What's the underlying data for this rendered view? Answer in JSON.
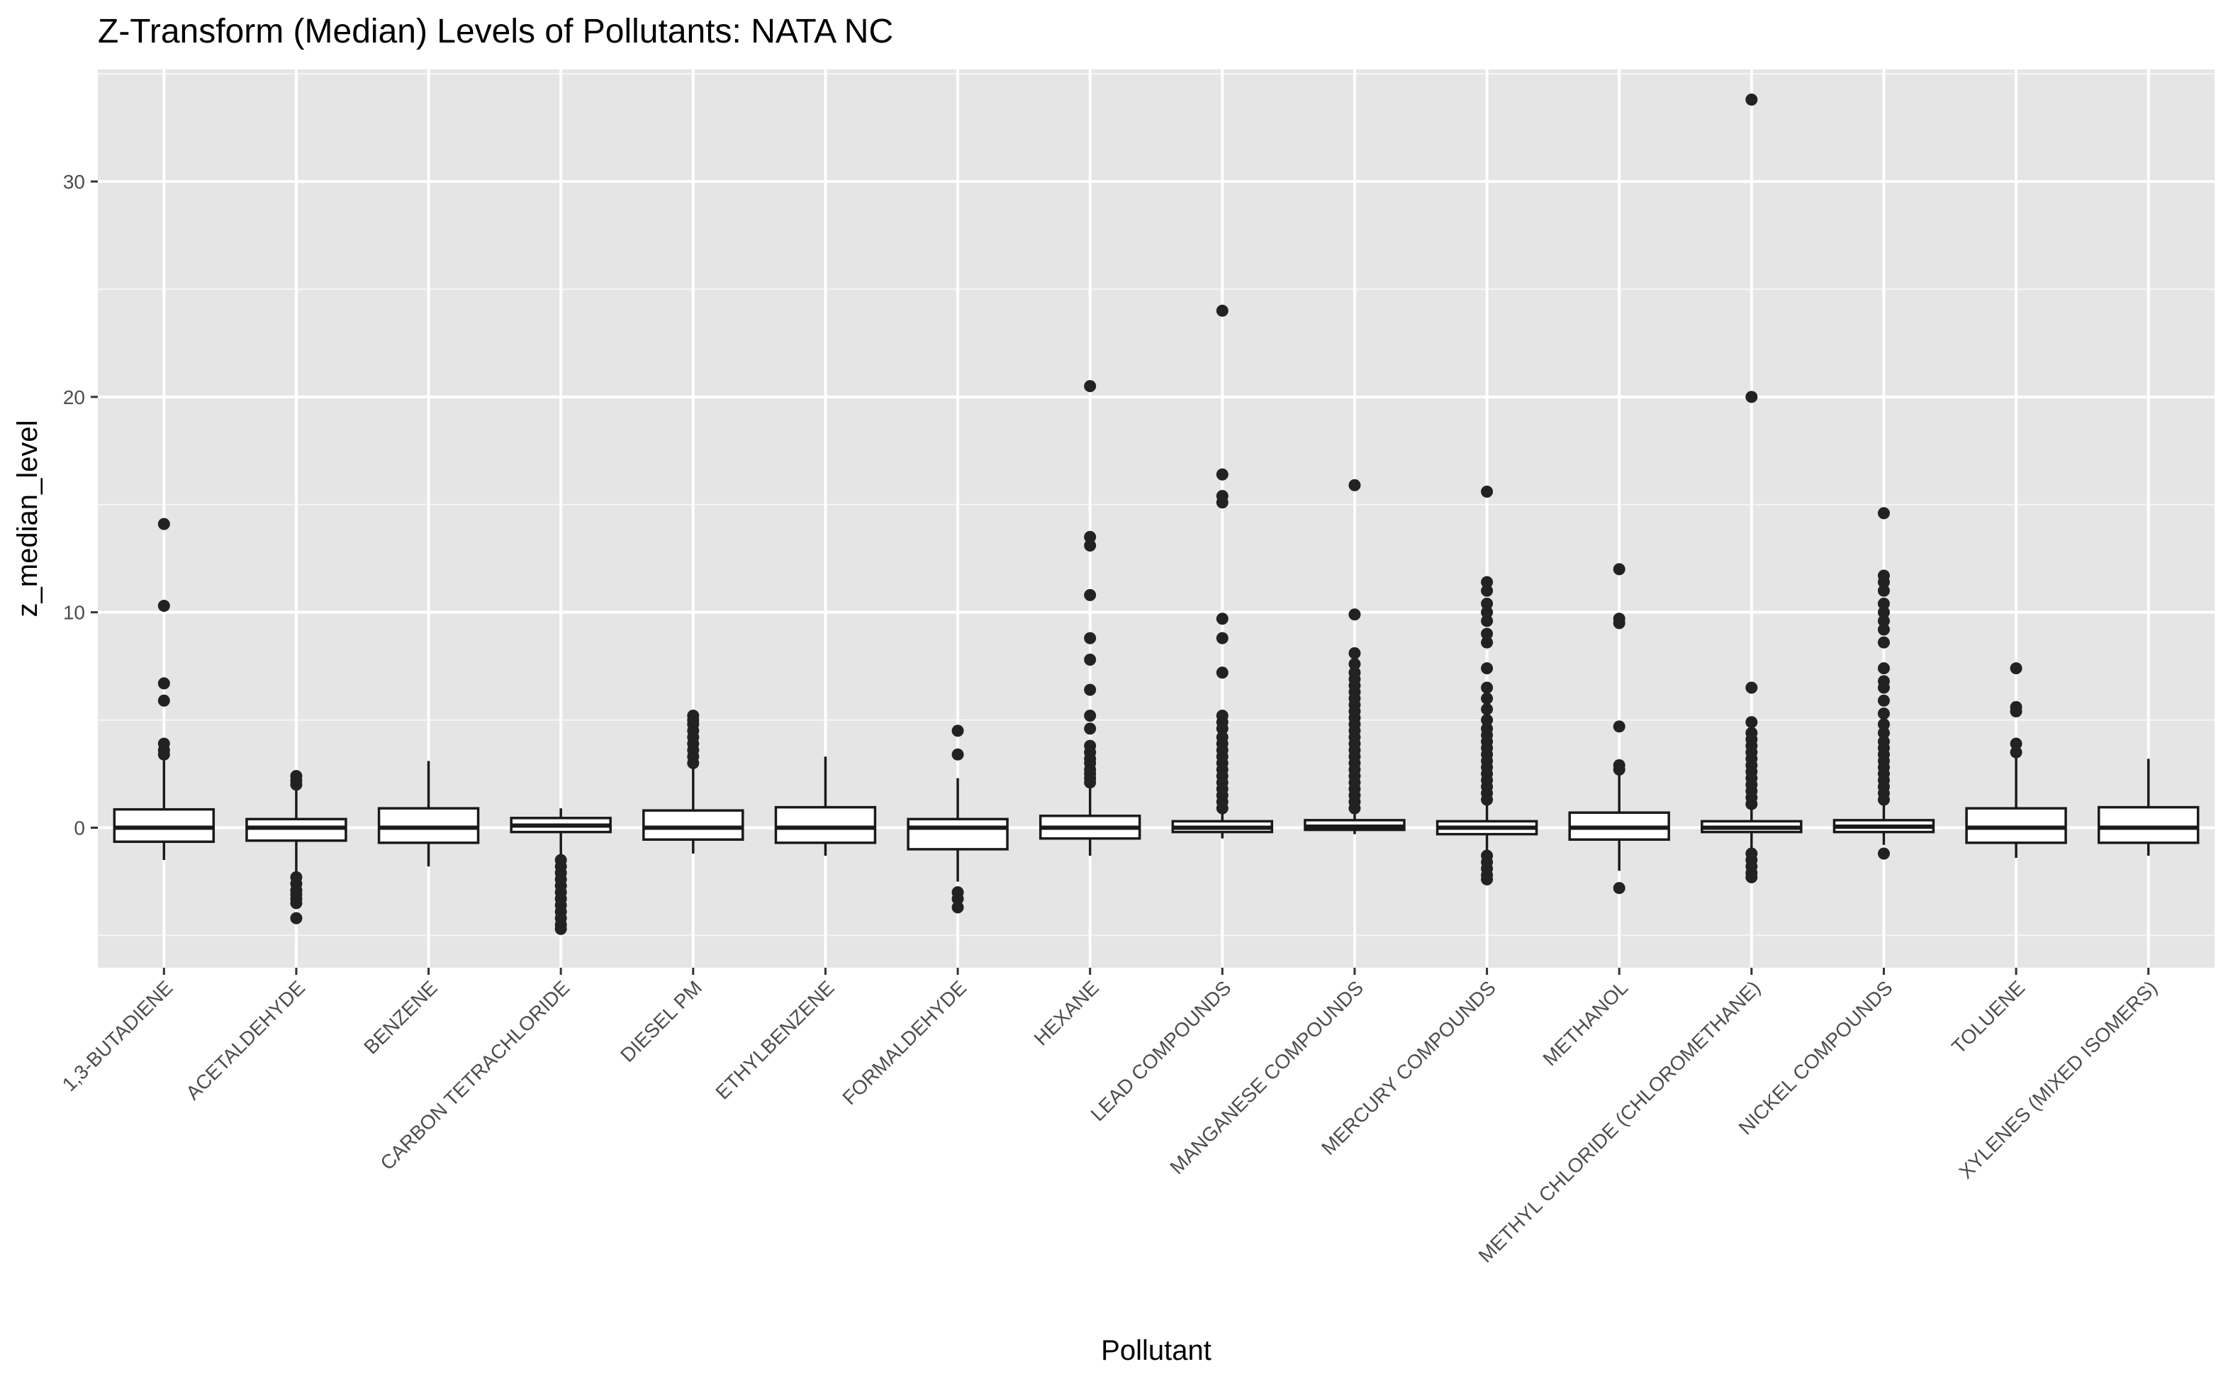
{
  "chart_data": {
    "type": "box",
    "title": "Z-Transform (Median) Levels of Pollutants: NATA NC",
    "xlabel": "Pollutant",
    "ylabel": "z_median_level",
    "ylim": [
      -6.5,
      35.2
    ],
    "yticks": [
      0,
      10,
      20,
      30
    ],
    "grid": true,
    "legend": "none",
    "colors": {
      "panel_bg": "#e5e5e5",
      "grid": "#ffffff",
      "box_fill": "#ffffff",
      "box_stroke": "#1a1a1a",
      "outlier": "#222222",
      "tick_text": "#4d4d4d"
    },
    "categories": [
      "1,3-BUTADIENE",
      "ACETALDEHYDE",
      "BENZENE",
      "CARBON TETRACHLORIDE",
      "DIESEL PM",
      "ETHYLBENZENE",
      "FORMALDEHYDE",
      "HEXANE",
      "LEAD COMPOUNDS",
      "MANGANESE COMPOUNDS",
      "MERCURY COMPOUNDS",
      "METHANOL",
      "METHYL CHLORIDE (CHLOROMETHANE)",
      "NICKEL COMPOUNDS",
      "TOLUENE",
      "XYLENES (MIXED ISOMERS)"
    ],
    "boxes": [
      {
        "min": -1.5,
        "q1": -0.65,
        "median": 0.0,
        "q3": 0.85,
        "max": 3.2,
        "outliers": [
          3.4,
          3.6,
          3.9,
          5.9,
          6.7,
          10.3,
          14.1
        ]
      },
      {
        "min": -2.1,
        "q1": -0.6,
        "median": 0.0,
        "q3": 0.4,
        "max": 1.8,
        "outliers": [
          2.0,
          2.2,
          2.4,
          -2.3,
          -2.6,
          -2.9,
          -3.1,
          -3.3,
          -3.5,
          -4.2
        ]
      },
      {
        "min": -1.8,
        "q1": -0.7,
        "median": 0.0,
        "q3": 0.9,
        "max": 3.1,
        "outliers": []
      },
      {
        "min": -1.3,
        "q1": -0.2,
        "median": 0.1,
        "q3": 0.45,
        "max": 0.9,
        "outliers": [
          -1.5,
          -1.8,
          -2.1,
          -2.4,
          -2.7,
          -3.0,
          -3.3,
          -3.6,
          -3.9,
          -4.2,
          -4.5,
          -4.7
        ]
      },
      {
        "min": -1.2,
        "q1": -0.55,
        "median": 0.0,
        "q3": 0.8,
        "max": 2.8,
        "outliers": [
          3.0,
          3.3,
          3.6,
          3.9,
          4.2,
          4.5,
          4.8,
          5.0,
          5.2
        ]
      },
      {
        "min": -1.3,
        "q1": -0.7,
        "median": 0.0,
        "q3": 0.95,
        "max": 3.3,
        "outliers": []
      },
      {
        "min": -2.5,
        "q1": -1.0,
        "median": 0.0,
        "q3": 0.4,
        "max": 2.3,
        "outliers": [
          3.4,
          4.5,
          -3.0,
          -3.3,
          -3.7
        ]
      },
      {
        "min": -1.3,
        "q1": -0.5,
        "median": 0.0,
        "q3": 0.55,
        "max": 1.9,
        "outliers": [
          2.1,
          2.3,
          2.5,
          2.7,
          3.0,
          3.2,
          3.5,
          3.8,
          4.6,
          5.2,
          6.4,
          7.8,
          8.8,
          10.8,
          13.1,
          13.5,
          20.5
        ]
      },
      {
        "min": -0.5,
        "q1": -0.2,
        "median": 0.0,
        "q3": 0.3,
        "max": 0.7,
        "outliers": [
          0.9,
          1.2,
          1.5,
          1.8,
          2.1,
          2.4,
          2.7,
          3.0,
          3.3,
          3.6,
          3.9,
          4.2,
          4.6,
          4.9,
          5.2,
          7.2,
          8.8,
          9.7,
          15.1,
          15.4,
          16.4,
          24.0
        ]
      },
      {
        "min": -0.3,
        "q1": -0.1,
        "median": 0.05,
        "q3": 0.35,
        "max": 0.7,
        "outliers": [
          0.9,
          1.2,
          1.5,
          1.8,
          2.1,
          2.4,
          2.7,
          3.0,
          3.3,
          3.6,
          3.9,
          4.2,
          4.5,
          4.8,
          5.1,
          5.4,
          5.7,
          6.0,
          6.3,
          6.6,
          6.9,
          7.2,
          7.6,
          8.1,
          9.9,
          15.9
        ]
      },
      {
        "min": -1.1,
        "q1": -0.3,
        "median": 0.0,
        "q3": 0.3,
        "max": 1.1,
        "outliers": [
          1.3,
          1.6,
          1.9,
          2.2,
          2.5,
          2.8,
          3.1,
          3.4,
          3.7,
          4.0,
          4.3,
          4.6,
          5.0,
          5.5,
          6.0,
          6.5,
          7.4,
          8.6,
          9.0,
          9.6,
          10.0,
          10.4,
          11.0,
          11.4,
          15.6,
          -1.3,
          -1.6,
          -1.9,
          -2.2,
          -2.4
        ]
      },
      {
        "min": -2.0,
        "q1": -0.55,
        "median": 0.0,
        "q3": 0.7,
        "max": 2.5,
        "outliers": [
          2.7,
          2.9,
          4.7,
          9.5,
          9.7,
          12.0,
          -2.8
        ]
      },
      {
        "min": -1.0,
        "q1": -0.2,
        "median": 0.0,
        "q3": 0.3,
        "max": 0.9,
        "outliers": [
          1.1,
          1.4,
          1.7,
          2.0,
          2.3,
          2.6,
          2.9,
          3.2,
          3.5,
          3.8,
          4.1,
          4.4,
          4.9,
          6.5,
          20.0,
          33.8,
          -1.2,
          -1.5,
          -1.8,
          -2.1,
          -2.3
        ]
      },
      {
        "min": -0.8,
        "q1": -0.2,
        "median": 0.05,
        "q3": 0.35,
        "max": 1.1,
        "outliers": [
          1.3,
          1.6,
          1.9,
          2.2,
          2.5,
          2.8,
          3.1,
          3.4,
          3.7,
          4.0,
          4.4,
          4.8,
          5.3,
          5.9,
          6.5,
          6.8,
          7.4,
          8.6,
          9.2,
          9.6,
          10.0,
          10.4,
          11.0,
          11.4,
          11.7,
          14.6,
          -1.2
        ]
      },
      {
        "min": -1.4,
        "q1": -0.7,
        "median": 0.0,
        "q3": 0.9,
        "max": 3.3,
        "outliers": [
          3.5,
          3.9,
          5.4,
          5.6,
          7.4
        ]
      },
      {
        "min": -1.3,
        "q1": -0.7,
        "median": 0.0,
        "q3": 0.95,
        "max": 3.2,
        "outliers": []
      }
    ]
  }
}
